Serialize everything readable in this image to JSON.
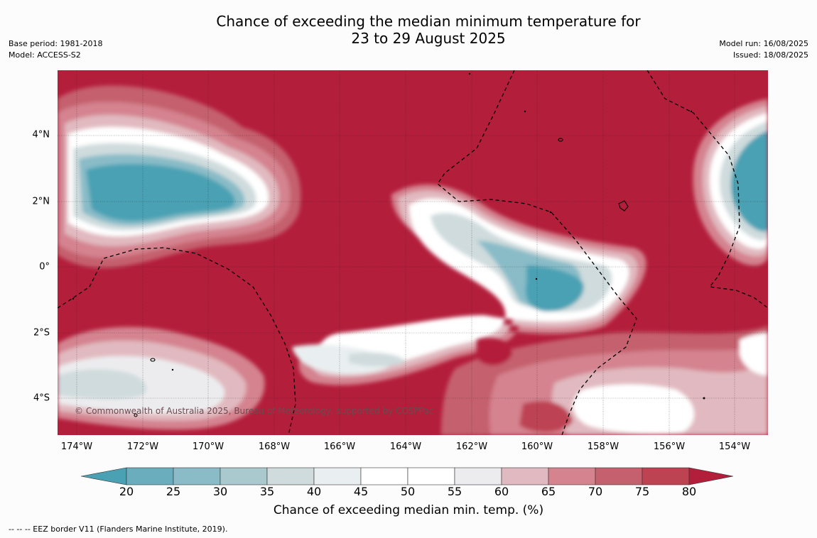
{
  "title": {
    "line1": "Chance of exceeding the median minimum temperature for",
    "line2": "23 to 29 August 2025"
  },
  "meta_left": {
    "base_period": "Base period: 1981-2018",
    "model": "Model: ACCESS-S2"
  },
  "meta_right": {
    "model_run": "Model run: 16/08/2025",
    "issued": "Issued: 18/08/2025"
  },
  "map": {
    "copyright": "© Commonwealth of Australia 2025, Bureau of Meteorology, supported by COSPPac",
    "lat_labels": [
      "4°N",
      "2°N",
      "0°",
      "2°S",
      "4°S"
    ],
    "lon_labels": [
      "174°W",
      "172°W",
      "170°W",
      "168°W",
      "166°W",
      "164°W",
      "162°W",
      "160°W",
      "158°W",
      "156°W",
      "154°W"
    ]
  },
  "colorbar": {
    "ticks": [
      "20",
      "25",
      "30",
      "35",
      "40",
      "45",
      "50",
      "55",
      "60",
      "65",
      "70",
      "75",
      "80"
    ],
    "colors": [
      "#4aa1b3",
      "#6aaebd",
      "#89bcc7",
      "#a9c9ce",
      "#cfdbdd",
      "#e9eff0",
      "#ffffff",
      "#ffffff",
      "#ececee",
      "#e1b9c0",
      "#d4838f",
      "#c5616e",
      "#bd4353",
      "#b31e3b"
    ],
    "label": "Chance of exceeding median min. temp. (%)"
  },
  "footnote": "--  --  -- EEZ border V11 (Flanders Marine Institute, 2019)."
}
